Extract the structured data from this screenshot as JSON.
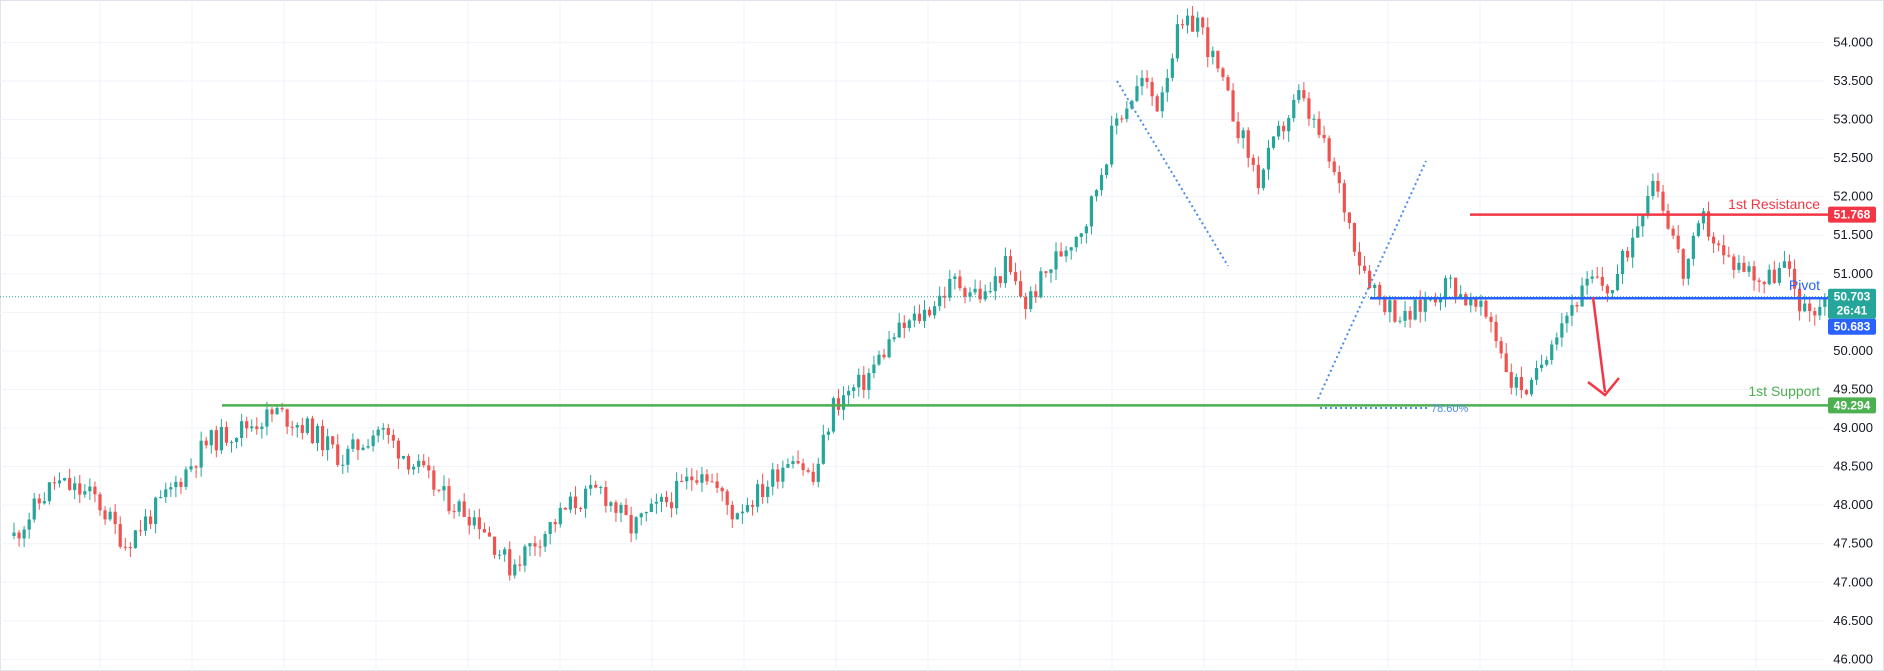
{
  "colors": {
    "up": "#26a69a",
    "down": "#ef5350",
    "resistance": "#f23645",
    "pivot": "#2962ff",
    "support": "#4caf50",
    "fib": "#4a8de8",
    "grid": "#f0f3fa",
    "axis_text": "#131722"
  },
  "chart_data": {
    "type": "candlestick",
    "ylim": [
      45.85,
      54.55
    ],
    "y_ticks": [
      "54.000",
      "53.500",
      "53.000",
      "52.500",
      "52.000",
      "51.500",
      "51.000",
      "50.500",
      "50.000",
      "49.500",
      "49.000",
      "48.500",
      "48.000",
      "47.500",
      "47.000",
      "46.500",
      "46.000"
    ],
    "y_tick_values": [
      54.0,
      53.5,
      53.0,
      52.5,
      52.0,
      51.5,
      51.0,
      50.5,
      50.0,
      49.5,
      49.0,
      48.5,
      48.0,
      47.5,
      47.0,
      46.5,
      46.0
    ],
    "price_path": [
      [
        0,
        47.6
      ],
      [
        8,
        48.3
      ],
      [
        16,
        48.1
      ],
      [
        22,
        47.5
      ],
      [
        30,
        48.1
      ],
      [
        38,
        48.8
      ],
      [
        45,
        49.0
      ],
      [
        52,
        49.2
      ],
      [
        58,
        49.0
      ],
      [
        65,
        48.6
      ],
      [
        72,
        49.0
      ],
      [
        78,
        48.6
      ],
      [
        85,
        48.1
      ],
      [
        92,
        47.8
      ],
      [
        98,
        47.2
      ],
      [
        104,
        47.6
      ],
      [
        110,
        48.0
      ],
      [
        116,
        48.2
      ],
      [
        122,
        47.7
      ],
      [
        130,
        48.1
      ],
      [
        136,
        48.5
      ],
      [
        142,
        47.9
      ],
      [
        148,
        48.2
      ],
      [
        154,
        48.7
      ],
      [
        158,
        48.3
      ],
      [
        162,
        49.3
      ],
      [
        168,
        49.6
      ],
      [
        174,
        50.2
      ],
      [
        180,
        50.5
      ],
      [
        186,
        50.9
      ],
      [
        192,
        50.7
      ],
      [
        196,
        51.1
      ],
      [
        200,
        50.6
      ],
      [
        206,
        51.2
      ],
      [
        212,
        51.7
      ],
      [
        218,
        53.0
      ],
      [
        223,
        53.5
      ],
      [
        226,
        53.2
      ],
      [
        230,
        54.1
      ],
      [
        234,
        54.3
      ],
      [
        238,
        53.6
      ],
      [
        242,
        52.9
      ],
      [
        246,
        52.2
      ],
      [
        250,
        52.8
      ],
      [
        254,
        53.3
      ],
      [
        258,
        52.8
      ],
      [
        262,
        52.1
      ],
      [
        266,
        51.2
      ],
      [
        270,
        50.7
      ],
      [
        275,
        50.4
      ],
      [
        280,
        50.7
      ],
      [
        284,
        50.9
      ],
      [
        288,
        50.6
      ],
      [
        292,
        50.4
      ],
      [
        296,
        49.6
      ],
      [
        300,
        49.5
      ],
      [
        304,
        50.2
      ],
      [
        308,
        50.6
      ],
      [
        312,
        50.9
      ],
      [
        316,
        50.8
      ],
      [
        320,
        51.5
      ],
      [
        324,
        52.3
      ],
      [
        328,
        51.5
      ],
      [
        330,
        51.0
      ],
      [
        334,
        51.7
      ],
      [
        338,
        51.2
      ],
      [
        342,
        51.1
      ],
      [
        346,
        50.9
      ],
      [
        350,
        51.1
      ],
      [
        354,
        50.5
      ],
      [
        358,
        50.65
      ]
    ],
    "levels": [
      {
        "name": "1st Resistance",
        "value": 51.768,
        "badge": "51.768"
      },
      {
        "name": "Pivot",
        "value": 50.683,
        "badge": "50.683"
      },
      {
        "name": "1st Support",
        "value": 49.294,
        "badge": "49.294"
      }
    ],
    "last_price": {
      "value": 50.703,
      "price": "50.703",
      "countdown": "26:41"
    },
    "fib_label": "78.60%"
  }
}
